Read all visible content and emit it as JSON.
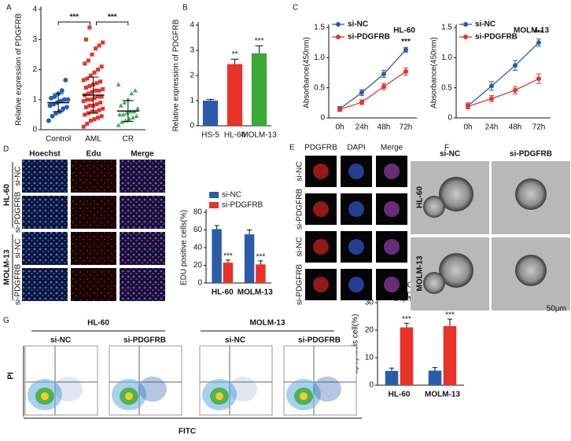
{
  "chart_data": [
    {
      "type": "strip",
      "panel": "A",
      "y_label": "Relative expression of PDGFRB",
      "categories": [
        "Control",
        "AML",
        "CR"
      ],
      "groups": [
        {
          "color": "#1f5fbf",
          "marker": "circle",
          "values": [
            0.3,
            0.45,
            0.55,
            0.6,
            0.7,
            0.75,
            0.8,
            0.85,
            0.9,
            0.95,
            1.0,
            1.0,
            1.05,
            1.1,
            1.2,
            1.3,
            1.65
          ]
        },
        {
          "color": "#e8322a",
          "marker": "square",
          "values": [
            0.1,
            0.2,
            0.3,
            0.35,
            0.4,
            0.45,
            0.5,
            0.55,
            0.6,
            0.6,
            0.65,
            0.7,
            0.75,
            0.8,
            0.8,
            0.85,
            0.9,
            0.95,
            1.0,
            1.0,
            1.05,
            1.1,
            1.1,
            1.15,
            1.2,
            1.25,
            1.3,
            1.3,
            1.35,
            1.4,
            1.45,
            1.5,
            1.55,
            1.6,
            1.65,
            1.7,
            1.8,
            1.9,
            2.0,
            2.1,
            2.2,
            2.3,
            2.5,
            2.7,
            2.8,
            2.9,
            3.0,
            3.4
          ]
        },
        {
          "color": "#3cb44b",
          "marker": "triangle",
          "values": [
            0.15,
            0.25,
            0.3,
            0.35,
            0.4,
            0.45,
            0.5,
            0.5,
            0.55,
            0.6,
            0.6,
            0.7,
            0.8,
            0.9,
            1.0,
            1.2,
            1.3,
            1.5
          ]
        }
      ],
      "means": [
        0.9,
        1.15,
        0.62
      ],
      "errors": [
        0.3,
        0.6,
        0.35
      ],
      "annotations": [
        "***",
        "***"
      ],
      "ylim": [
        0,
        4
      ],
      "yticks": [
        0,
        1,
        2,
        3,
        4
      ]
    },
    {
      "type": "bar",
      "panel": "B",
      "y_label": "Relative expression of PDGFRB",
      "categories": [
        "HS-5",
        "HL-60",
        "MOLM-13"
      ],
      "values": [
        1.0,
        2.45,
        2.88
      ],
      "errors": [
        0.05,
        0.2,
        0.3
      ],
      "colors": [
        "#2a5caa",
        "#e8322a",
        "#3aa935"
      ],
      "sig_labels": [
        null,
        "**",
        "***"
      ],
      "ylim": [
        0,
        4
      ],
      "yticks": [
        0,
        1,
        2,
        3,
        4
      ]
    },
    {
      "type": "line",
      "panel": "C",
      "subtitle": "HL-60",
      "y_label": "Absorbance(450nm)",
      "categories": [
        "0h",
        "24h",
        "48h",
        "72h"
      ],
      "series": [
        {
          "name": "si-NC",
          "color": "#2a5caa",
          "values": [
            0.15,
            0.42,
            0.73,
            1.13
          ],
          "errors": [
            0.04,
            0.05,
            0.06,
            0.04
          ]
        },
        {
          "name": "si-PDGFRB",
          "color": "#e8322a",
          "values": [
            0.14,
            0.26,
            0.52,
            0.77
          ],
          "errors": [
            0.03,
            0.04,
            0.05,
            0.06
          ]
        }
      ],
      "annotation": "***",
      "ylim": [
        0,
        1.5
      ],
      "yticks": [
        0,
        0.5,
        {
          "value": 1,
          "label": "1.0"
        },
        1.5
      ]
    },
    {
      "type": "line",
      "subtitle": "MOLM-13",
      "y_label": "Absorbance(450nm)",
      "categories": [
        "0h",
        "24h",
        "48h",
        "72h"
      ],
      "series": [
        {
          "name": "si-NC",
          "color": "#2a5caa",
          "values": [
            0.2,
            0.53,
            0.87,
            1.25
          ],
          "errors": [
            0.05,
            0.07,
            0.08,
            0.06
          ]
        },
        {
          "name": "si-PDGFRB",
          "color": "#e8322a",
          "values": [
            0.19,
            0.32,
            0.46,
            0.65
          ],
          "errors": [
            0.04,
            0.05,
            0.06,
            0.08
          ]
        }
      ],
      "annotation": "***",
      "ylim": [
        0,
        1.5
      ],
      "yticks": [
        0,
        0.5,
        {
          "value": 1,
          "label": "1.0"
        },
        1.5
      ]
    },
    {
      "type": "grouped-bar",
      "y_label": "EDU positive cells(%)",
      "categories": [
        "HL-60",
        "MOLM-13"
      ],
      "series": [
        {
          "name": "si-NC",
          "color": "#2a5caa",
          "values": [
            61,
            55
          ],
          "errors": [
            4,
            5
          ]
        },
        {
          "name": "si-PDGFRB",
          "color": "#e8322a",
          "values": [
            23,
            21
          ],
          "errors": [
            3,
            4
          ],
          "sig_labels": [
            "***",
            "***"
          ]
        }
      ],
      "ylim": [
        0,
        80
      ],
      "yticks": [
        0,
        20,
        40,
        60,
        80
      ]
    },
    {
      "type": "grouped-bar",
      "y_label": "apoptosis cell(%)",
      "categories": [
        "HL-60",
        "MOLM-13"
      ],
      "series": [
        {
          "name": "si-NC",
          "color": "#2a5caa",
          "values": [
            5.2,
            5.3
          ],
          "errors": [
            1.0,
            1.1
          ]
        },
        {
          "name": "si-PDGFRB",
          "color": "#e8322a",
          "values": [
            21,
            21.5
          ],
          "errors": [
            1.5,
            2.5
          ],
          "sig_labels": [
            "***",
            "***"
          ]
        }
      ],
      "ylim": [
        0,
        30
      ],
      "yticks": [
        0,
        10,
        20,
        30
      ]
    }
  ],
  "panels": {
    "D": {
      "label": "D",
      "columns": [
        "Hoechst",
        "Edu",
        "Merge"
      ],
      "rows": [
        "si-NC",
        "si-PDGFRB",
        "si-NC",
        "si-PDGFRB"
      ],
      "groups": [
        "HL-60",
        "MOLM-13"
      ]
    },
    "E": {
      "label": "E",
      "columns": [
        "PDGFRB",
        "DAPI",
        "Merge"
      ],
      "rows": [
        "si-NC",
        "si-PDGFRB",
        "si-NC",
        "si-PDGFRB"
      ],
      "scale": "20μm"
    },
    "F": {
      "label": "F",
      "columns": [
        "si-NC",
        "si-PDGFRB"
      ],
      "rows": [
        "HL-60",
        "MOLM-13"
      ],
      "scale": "50μm"
    },
    "G": {
      "label": "G",
      "groups": [
        "HL-60",
        "MOLM-13"
      ],
      "conditions": [
        "si-NC",
        "si-PDGFRB",
        "si-NC",
        "si-PDGFRB"
      ],
      "y_label": "PI",
      "x_label": "FITC"
    }
  }
}
